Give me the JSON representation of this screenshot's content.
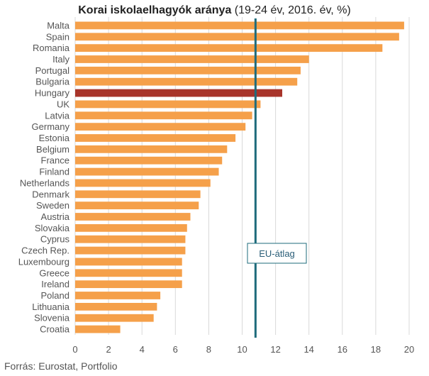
{
  "title_bold": "Korai iskolaelhagyók aránya",
  "title_rest": " (19-24 év, 2016. év, %)",
  "source": "Forrás: Eurostat, Portfolio",
  "colors": {
    "bar": "#f5a04a",
    "highlight": "#a8342a",
    "reference": "#1e6b7b",
    "grid": "#d9d9d9"
  },
  "chart_data": {
    "type": "bar",
    "orientation": "horizontal",
    "title": "Korai iskolaelhagyók aránya (19-24 év, 2016. év, %)",
    "categories": [
      "Malta",
      "Spain",
      "Romania",
      "Italy",
      "Portugal",
      "Bulgaria",
      "Hungary",
      "UK",
      "Latvia",
      "Germany",
      "Estonia",
      "Belgium",
      "France",
      "Finland",
      "Netherlands",
      "Denmark",
      "Sweden",
      "Austria",
      "Slovakia",
      "Cyprus",
      "Czech Rep.",
      "Luxembourg",
      "Greece",
      "Ireland",
      "Poland",
      "Lithuania",
      "Slovenia",
      "Croatia"
    ],
    "values": [
      19.7,
      19.4,
      18.4,
      14.0,
      13.5,
      13.3,
      12.4,
      11.1,
      10.6,
      10.2,
      9.6,
      9.1,
      8.8,
      8.6,
      8.1,
      7.5,
      7.4,
      6.9,
      6.7,
      6.6,
      6.6,
      6.4,
      6.4,
      6.4,
      5.1,
      4.9,
      4.7,
      2.7
    ],
    "highlight": "Hungary",
    "xlim": [
      0,
      20
    ],
    "xticks": [
      0,
      2,
      4,
      6,
      8,
      10,
      12,
      14,
      16,
      18,
      20
    ],
    "grid": true,
    "reference_line": {
      "value": 10.8,
      "label": "EU-átlag"
    }
  }
}
